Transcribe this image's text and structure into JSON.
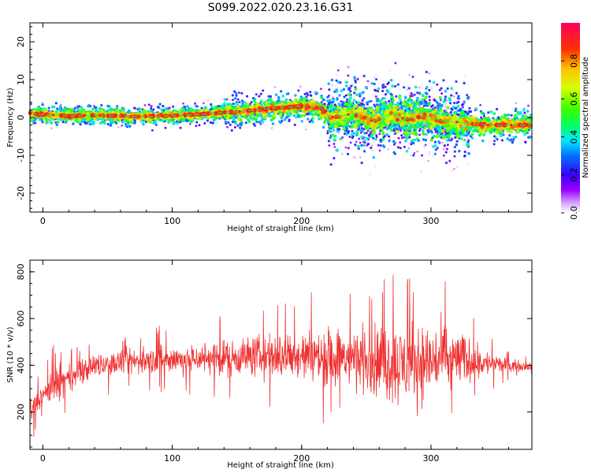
{
  "title": "S099.2022.020.23.16.G31",
  "chart_data": [
    {
      "type": "heatmap",
      "xlabel": "Height of straight line (km)",
      "ylabel": "Frequency (Hz)",
      "xlim": [
        -10,
        378
      ],
      "ylim": [
        -25,
        25
      ],
      "xticks": [
        0,
        100,
        200,
        300
      ],
      "yticks": [
        -20,
        -10,
        0,
        10,
        20
      ],
      "colorbar": {
        "label": "Normalized spectral amplitude",
        "range": [
          0,
          1
        ],
        "ticks": [
          "0.0",
          "0.2",
          "0.4",
          "0.6",
          "0.8"
        ],
        "colormap": "gist_rainbow_r"
      },
      "ridge_frequency": [
        {
          "x": -10,
          "y": 1.0
        },
        {
          "x": 20,
          "y": 0.4
        },
        {
          "x": 40,
          "y": 0.6
        },
        {
          "x": 80,
          "y": 0.2
        },
        {
          "x": 120,
          "y": 0.8
        },
        {
          "x": 150,
          "y": 1.5
        },
        {
          "x": 180,
          "y": 2.5
        },
        {
          "x": 200,
          "y": 3.0
        },
        {
          "x": 215,
          "y": 2.5
        },
        {
          "x": 222,
          "y": 0.0
        },
        {
          "x": 240,
          "y": 1.0
        },
        {
          "x": 255,
          "y": -1.0
        },
        {
          "x": 270,
          "y": 1.0
        },
        {
          "x": 280,
          "y": -0.5
        },
        {
          "x": 295,
          "y": 0.5
        },
        {
          "x": 310,
          "y": -1.0
        },
        {
          "x": 330,
          "y": -1.5
        },
        {
          "x": 345,
          "y": -2.0
        },
        {
          "x": 378,
          "y": -2.0
        }
      ]
    },
    {
      "type": "line",
      "xlabel": "Height of straight line (km)",
      "ylabel": "SNR (10 * v/v)",
      "xlim": [
        -10,
        378
      ],
      "ylim": [
        40,
        850
      ],
      "xticks": [
        0,
        100,
        200,
        300
      ],
      "yticks": [
        200,
        400,
        600,
        800
      ],
      "series": [
        {
          "color": "#f03232",
          "envelope": [
            {
              "x": -10,
              "mean": 200,
              "spread": 90
            },
            {
              "x": 0,
              "mean": 270,
              "spread": 70
            },
            {
              "x": 10,
              "mean": 320,
              "spread": 120
            },
            {
              "x": 20,
              "mean": 340,
              "spread": 90
            },
            {
              "x": 40,
              "mean": 400,
              "spread": 80
            },
            {
              "x": 80,
              "mean": 420,
              "spread": 90
            },
            {
              "x": 120,
              "mean": 430,
              "spread": 100
            },
            {
              "x": 160,
              "mean": 440,
              "spread": 130
            },
            {
              "x": 200,
              "mean": 440,
              "spread": 170
            },
            {
              "x": 240,
              "mean": 430,
              "spread": 200
            },
            {
              "x": 280,
              "mean": 400,
              "spread": 270
            },
            {
              "x": 300,
              "mean": 420,
              "spread": 250
            },
            {
              "x": 320,
              "mean": 430,
              "spread": 190
            },
            {
              "x": 340,
              "mean": 410,
              "spread": 90
            },
            {
              "x": 360,
              "mean": 400,
              "spread": 40
            },
            {
              "x": 378,
              "mean": 395,
              "spread": 25
            }
          ]
        }
      ]
    }
  ]
}
